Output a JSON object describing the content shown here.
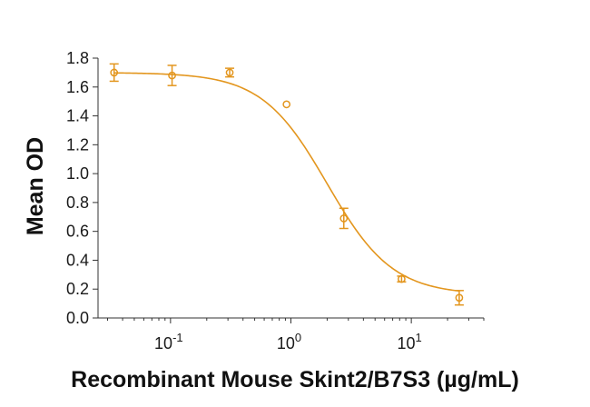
{
  "chart_data": {
    "type": "scatter",
    "xscale": "log",
    "xlabel": "Recombinant Mouse Skint2/B7S3 (µg/mL)",
    "ylabel": "Mean OD",
    "xlim": [
      0.025,
      40
    ],
    "ylim": [
      0,
      1.8
    ],
    "yticks": [
      "0.0",
      "0.2",
      "0.4",
      "0.6",
      "0.8",
      "1.0",
      "1.2",
      "1.4",
      "1.6",
      "1.8"
    ],
    "xticks": [
      {
        "value": 0.1,
        "base": "10",
        "exp": "-1"
      },
      {
        "value": 1,
        "base": "10",
        "exp": "0"
      },
      {
        "value": 10,
        "base": "10",
        "exp": "1"
      }
    ],
    "grid": false,
    "color": "#e3961e",
    "points": [
      {
        "x": 0.034,
        "y": 1.7,
        "err": 0.06
      },
      {
        "x": 0.103,
        "y": 1.68,
        "err": 0.07
      },
      {
        "x": 0.31,
        "y": 1.7,
        "err": 0.03
      },
      {
        "x": 0.92,
        "y": 1.48,
        "err": 0.0
      },
      {
        "x": 2.75,
        "y": 0.69,
        "err": 0.07
      },
      {
        "x": 8.3,
        "y": 0.27,
        "err": 0.02
      },
      {
        "x": 25,
        "y": 0.14,
        "err": 0.05
      }
    ],
    "fit": {
      "model": "4PL",
      "top": 1.7,
      "bottom": 0.16,
      "ec50": 2.0,
      "hill": 1.6
    }
  }
}
